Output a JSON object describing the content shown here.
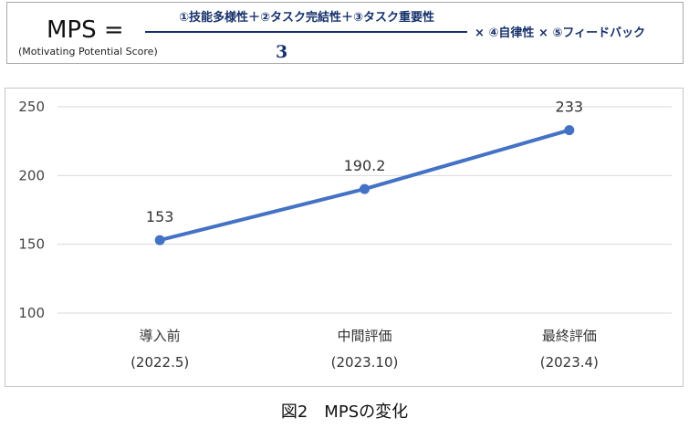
{
  "formula": {
    "symbol": "MPS =",
    "subtitle": "(Motivating Potential Score)",
    "numerator": "①技能多様性＋②タスク完結性＋③タスク重要性",
    "denominator": "3",
    "multiplier": "× ④自律性 × ⑤フィードバック",
    "text_color": "#17316b"
  },
  "chart_data": {
    "type": "line",
    "categories": [
      [
        "導入前",
        "(2022.5)"
      ],
      [
        "中間評価",
        "(2023.10)"
      ],
      [
        "最終評価",
        "(2023.4)"
      ]
    ],
    "series": [
      {
        "values": [
          153,
          190.2,
          233
        ],
        "color": "#4472c4",
        "marker": "circle",
        "data_labels": [
          "153",
          "190.2",
          "233"
        ]
      }
    ],
    "yticks": [
      100,
      150,
      200,
      250
    ],
    "ylim": [
      100,
      250
    ],
    "grid": true,
    "legend": false,
    "title": "",
    "xlabel": "",
    "ylabel": ""
  },
  "caption": "図2　MPSの変化"
}
